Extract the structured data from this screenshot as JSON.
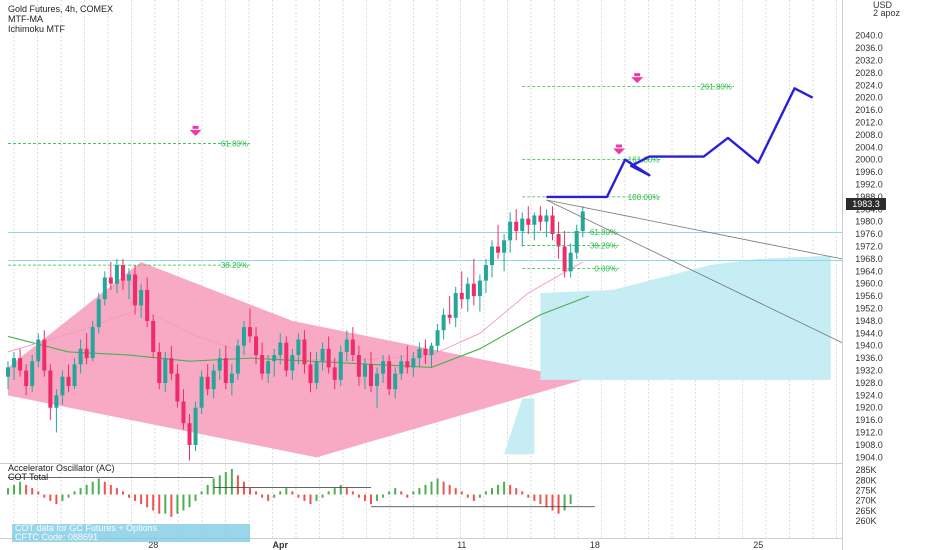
{
  "legend": {
    "title": "Gold Futures, 4h, COMEX",
    "indicator_1": "MTF-MA",
    "indicator_2": "Ichimoku MTF"
  },
  "oscillator": {
    "name": "Accelerator Oscillator (AC)",
    "sub": "COT Total",
    "note_line_1": "COT data for GC Futures + Options",
    "note_line_2": "CFTC Code: 088691"
  },
  "price_axis": {
    "currency": "USD",
    "currency_sub": "2 apoz",
    "last_price": "1983.3"
  },
  "colors": {
    "bull": "#26a69a",
    "bear": "#ef2b6a",
    "triangle": "#f7a1bf",
    "cloud": "#c6ecf4",
    "projection": "#2a1fd8",
    "fib": "#2dbd48",
    "marker": "#ee3aa0"
  },
  "chart_data": [
    {
      "type": "candlestick",
      "title": "Gold Futures, 4h, COMEX",
      "ylabel": "USD",
      "ylim": [
        1902.5,
        2051.5
      ],
      "y_ticks": [
        "2040.0",
        "2036.0",
        "2032.0",
        "2028.0",
        "2024.0",
        "2020.0",
        "2016.0",
        "2012.0",
        "2008.0",
        "2004.0",
        "2000.0",
        "1996.0",
        "1992.0",
        "1988.0",
        "1984.0",
        "1980.0",
        "1976.0",
        "1972.0",
        "1968.0",
        "1964.0",
        "1960.0",
        "1956.0",
        "1952.0",
        "1948.0",
        "1944.0",
        "1940.0",
        "1936.0",
        "1932.0",
        "1928.0",
        "1924.0",
        "1920.0",
        "1916.0",
        "1912.0",
        "1908.0",
        "1904.0"
      ],
      "x_ticks": [
        {
          "label": "28",
          "index": 24
        },
        {
          "label": "Apr",
          "index": 45
        },
        {
          "label": "11",
          "index": 75
        },
        {
          "label": "18",
          "index": 97
        },
        {
          "label": "25",
          "index": 124
        }
      ],
      "last_price": 1983.3,
      "candles": [
        [
          1930,
          1935,
          1926,
          1933
        ],
        [
          1933,
          1938,
          1929,
          1936
        ],
        [
          1936,
          1939,
          1930,
          1932
        ],
        [
          1932,
          1934,
          1924,
          1927
        ],
        [
          1927,
          1937,
          1925,
          1935
        ],
        [
          1935,
          1944,
          1933,
          1942
        ],
        [
          1942,
          1945,
          1930,
          1932
        ],
        [
          1932,
          1934,
          1916,
          1920
        ],
        [
          1920,
          1926,
          1912,
          1924
        ],
        [
          1924,
          1932,
          1921,
          1930
        ],
        [
          1930,
          1934,
          1925,
          1927
        ],
        [
          1927,
          1936,
          1926,
          1934
        ],
        [
          1934,
          1942,
          1931,
          1939
        ],
        [
          1939,
          1944,
          1934,
          1936
        ],
        [
          1936,
          1948,
          1935,
          1946
        ],
        [
          1946,
          1957,
          1944,
          1955
        ],
        [
          1955,
          1964,
          1953,
          1962
        ],
        [
          1962,
          1967,
          1958,
          1960
        ],
        [
          1960,
          1968,
          1957,
          1966
        ],
        [
          1966,
          1968,
          1958,
          1961
        ],
        [
          1961,
          1965,
          1955,
          1963
        ],
        [
          1963,
          1966,
          1950,
          1953
        ],
        [
          1953,
          1960,
          1949,
          1958
        ],
        [
          1958,
          1962,
          1946,
          1948
        ],
        [
          1948,
          1950,
          1936,
          1938
        ],
        [
          1938,
          1941,
          1926,
          1928
        ],
        [
          1928,
          1938,
          1925,
          1936
        ],
        [
          1936,
          1940,
          1929,
          1931
        ],
        [
          1931,
          1934,
          1920,
          1922
        ],
        [
          1922,
          1926,
          1913,
          1915
        ],
        [
          1915,
          1918,
          1903,
          1908
        ],
        [
          1908,
          1922,
          1906,
          1920
        ],
        [
          1920,
          1932,
          1918,
          1930
        ],
        [
          1930,
          1934,
          1924,
          1926
        ],
        [
          1926,
          1934,
          1923,
          1932
        ],
        [
          1932,
          1939,
          1929,
          1936
        ],
        [
          1936,
          1940,
          1926,
          1928
        ],
        [
          1928,
          1934,
          1924,
          1931
        ],
        [
          1931,
          1942,
          1929,
          1940
        ],
        [
          1940,
          1948,
          1937,
          1946
        ],
        [
          1946,
          1952,
          1941,
          1943
        ],
        [
          1943,
          1946,
          1934,
          1937
        ],
        [
          1937,
          1941,
          1929,
          1931
        ],
        [
          1931,
          1937,
          1928,
          1935
        ],
        [
          1935,
          1939,
          1930,
          1937
        ],
        [
          1937,
          1944,
          1934,
          1941
        ],
        [
          1941,
          1943,
          1930,
          1932
        ],
        [
          1932,
          1939,
          1929,
          1937
        ],
        [
          1937,
          1944,
          1934,
          1942
        ],
        [
          1942,
          1945,
          1931,
          1934
        ],
        [
          1934,
          1938,
          1925,
          1928
        ],
        [
          1928,
          1938,
          1926,
          1935
        ],
        [
          1935,
          1941,
          1932,
          1939
        ],
        [
          1939,
          1943,
          1931,
          1933
        ],
        [
          1933,
          1936,
          1926,
          1929
        ],
        [
          1929,
          1940,
          1927,
          1938
        ],
        [
          1938,
          1945,
          1935,
          1942
        ],
        [
          1942,
          1946,
          1935,
          1937
        ],
        [
          1937,
          1940,
          1927,
          1930
        ],
        [
          1930,
          1936,
          1926,
          1934
        ],
        [
          1934,
          1938,
          1925,
          1927
        ],
        [
          1927,
          1933,
          1920,
          1931
        ],
        [
          1931,
          1937,
          1928,
          1935
        ],
        [
          1935,
          1937,
          1924,
          1926
        ],
        [
          1926,
          1933,
          1923,
          1931
        ],
        [
          1931,
          1937,
          1929,
          1935
        ],
        [
          1935,
          1940,
          1931,
          1933
        ],
        [
          1933,
          1938,
          1930,
          1936
        ],
        [
          1936,
          1941,
          1933,
          1939
        ],
        [
          1939,
          1942,
          1934,
          1937
        ],
        [
          1937,
          1941,
          1933,
          1940
        ],
        [
          1940,
          1947,
          1938,
          1945
        ],
        [
          1945,
          1952,
          1942,
          1950
        ],
        [
          1950,
          1956,
          1947,
          1949
        ],
        [
          1949,
          1959,
          1946,
          1957
        ],
        [
          1957,
          1964,
          1952,
          1955
        ],
        [
          1955,
          1962,
          1951,
          1960
        ],
        [
          1960,
          1968,
          1953,
          1956
        ],
        [
          1956,
          1963,
          1951,
          1961
        ],
        [
          1961,
          1968,
          1957,
          1966
        ],
        [
          1966,
          1974,
          1962,
          1972
        ],
        [
          1972,
          1979,
          1968,
          1970
        ],
        [
          1970,
          1976,
          1964,
          1974
        ],
        [
          1974,
          1983,
          1970,
          1980
        ],
        [
          1980,
          1984,
          1974,
          1977
        ],
        [
          1977,
          1983,
          1972,
          1981
        ],
        [
          1981,
          1985,
          1976,
          1979
        ],
        [
          1979,
          1983,
          1974,
          1982
        ],
        [
          1982,
          1985,
          1977,
          1980
        ],
        [
          1980,
          1984,
          1975,
          1982
        ],
        [
          1982,
          1985,
          1974,
          1976
        ],
        [
          1976,
          1980,
          1968,
          1972
        ],
        [
          1972,
          1977,
          1962,
          1964
        ],
        [
          1964,
          1973,
          1962,
          1970
        ],
        [
          1970,
          1979,
          1968,
          1977
        ],
        [
          1977,
          1985,
          1975,
          1983.3
        ]
      ],
      "overlays": {
        "triangle": [
          [
            0,
            1933
          ],
          [
            22,
            1967
          ],
          [
            47,
            1948
          ],
          [
            95,
            1929
          ],
          [
            51,
            1904
          ],
          [
            0,
            1924
          ]
        ],
        "ichimoku_cloud": [
          [
            88,
            1929
          ],
          [
            88,
            1957
          ],
          [
            100,
            1958
          ],
          [
            108,
            1962
          ],
          [
            116,
            1966
          ],
          [
            124,
            1968
          ],
          [
            136,
            1969
          ],
          [
            136,
            1929
          ]
        ],
        "cloud_spike": [
          [
            82,
            1905
          ],
          [
            85,
            1923
          ],
          [
            87,
            1923
          ],
          [
            87,
            1905
          ]
        ],
        "ma_fast": [
          [
            0,
            1938
          ],
          [
            12,
            1945
          ],
          [
            22,
            1952
          ],
          [
            30,
            1944
          ],
          [
            40,
            1937
          ],
          [
            55,
            1935
          ],
          [
            70,
            1937
          ],
          [
            78,
            1944
          ],
          [
            86,
            1957
          ],
          [
            95,
            1967
          ]
        ],
        "ma_slow": [
          [
            0,
            1943
          ],
          [
            10,
            1938
          ],
          [
            20,
            1937
          ],
          [
            30,
            1935
          ],
          [
            40,
            1936
          ],
          [
            50,
            1935
          ],
          [
            60,
            1934
          ],
          [
            70,
            1933
          ],
          [
            78,
            1939
          ],
          [
            88,
            1950
          ],
          [
            96,
            1956
          ]
        ],
        "projection": [
          [
            89,
            1988
          ],
          [
            99,
            1988
          ],
          [
            102,
            2000
          ],
          [
            106,
            1995
          ],
          [
            103,
            1998
          ],
          [
            106,
            2001
          ],
          [
            115,
            2001
          ],
          [
            119,
            2007
          ],
          [
            124,
            1999
          ],
          [
            130,
            2023
          ],
          [
            133,
            2020
          ]
        ],
        "trend_line_1": [
          [
            89,
            1987
          ],
          [
            138,
            1968
          ]
        ],
        "trend_line_2": [
          [
            89,
            1987
          ],
          [
            138,
            1941
          ]
        ],
        "hlines": [
          {
            "y": 1976.5,
            "kind": "cyan",
            "x0": 0,
            "x1": 138
          },
          {
            "y": 1967.5,
            "kind": "cyan",
            "x0": 0,
            "x1": 138
          }
        ],
        "fib_levels": [
          {
            "y": 2023.6,
            "label": "261.80%",
            "x0": 85,
            "x1": 120
          },
          {
            "y": 2005.2,
            "label": "61.80%",
            "x0": 0,
            "x1": 40
          },
          {
            "y": 2000.1,
            "label": "161.80%",
            "x0": 85,
            "x1": 108
          },
          {
            "y": 1988.0,
            "label": "100.00%",
            "x0": 85,
            "x1": 108
          },
          {
            "y": 1976.6,
            "label": "61.80%",
            "x0": 85,
            "x1": 101
          },
          {
            "y": 1972.3,
            "label": "38.20%",
            "x0": 85,
            "x1": 101
          },
          {
            "y": 1966.0,
            "label": "38.20%",
            "x0": 0,
            "x1": 40
          },
          {
            "y": 1964.9,
            "label": "0.00%",
            "x0": 85,
            "x1": 101
          }
        ],
        "markers": [
          [
            31,
            2008
          ],
          [
            101,
            2002
          ],
          [
            104,
            2025
          ]
        ]
      }
    },
    {
      "type": "bar",
      "title": "Accelerator Oscillator (AC)",
      "subtitle": "COT Total",
      "ylim": [
        259500,
        287500
      ],
      "y_ticks": [
        "285K",
        "280K",
        "275K",
        "270K",
        "265K",
        "260K"
      ],
      "values": [
        2,
        3,
        4,
        3,
        2,
        1,
        -1,
        -2,
        -3,
        -2,
        -1,
        1,
        2,
        3,
        4,
        5,
        4,
        3,
        2,
        1,
        -1,
        -2,
        -3,
        -4,
        -5,
        -6,
        -6,
        -7,
        -6,
        -5,
        -4,
        -2,
        1,
        3,
        5,
        6,
        7,
        8,
        6,
        4,
        2,
        1,
        -1,
        -2,
        -1,
        1,
        2,
        1,
        -1,
        -2,
        -3,
        -2,
        -1,
        1,
        2,
        3,
        2,
        1,
        -1,
        -2,
        -3,
        -2,
        -1,
        1,
        2,
        1,
        -1,
        1,
        2,
        3,
        4,
        5,
        4,
        3,
        2,
        1,
        -1,
        -2,
        -1,
        1,
        2,
        3,
        4,
        3,
        2,
        1,
        -1,
        -2,
        -3,
        -4,
        -5,
        -6,
        -5,
        -3
      ]
    }
  ]
}
